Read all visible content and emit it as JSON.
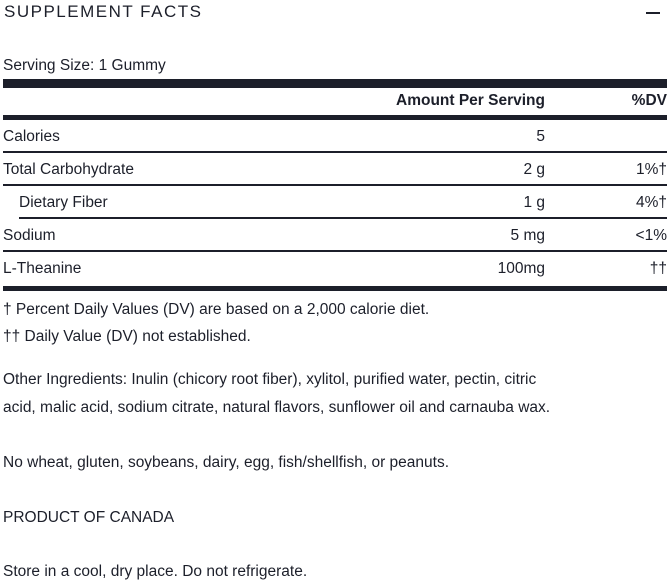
{
  "title": "SUPPLEMENT FACTS",
  "collapse_icon": "minus-icon",
  "serving_size": "Serving Size: 1 Gummy",
  "table": {
    "headers": {
      "amount": "Amount Per Serving",
      "dv": "%DV"
    },
    "rows": [
      {
        "name": "Calories",
        "amount": "5",
        "dv": ""
      },
      {
        "name": "Total Carbohydrate",
        "amount": "2 g",
        "dv": "1%†"
      },
      {
        "name": "Dietary Fiber",
        "amount": "1 g",
        "dv": "4%†"
      },
      {
        "name": "Sodium",
        "amount": "5 mg",
        "dv": "<1%"
      },
      {
        "name": "L-Theanine",
        "amount": "100mg",
        "dv": "††"
      }
    ]
  },
  "footnotes": [
    "† Percent Daily Values (DV) are based on a 2,000 calorie diet.",
    "†† Daily Value (DV) not established."
  ],
  "other_ingredients": [
    "Other Ingredients: Inulin (chicory root fiber), xylitol, purified water, pectin, citric",
    "acid, malic acid, sodium citrate, natural flavors, sunflower oil and carnauba wax."
  ],
  "allergens": "No wheat, gluten, soybeans, dairy, egg, fish/shellfish, or peanuts.",
  "origin": "PRODUCT OF CANADA",
  "storage": "Store in a cool, dry place. Do not refrigerate."
}
